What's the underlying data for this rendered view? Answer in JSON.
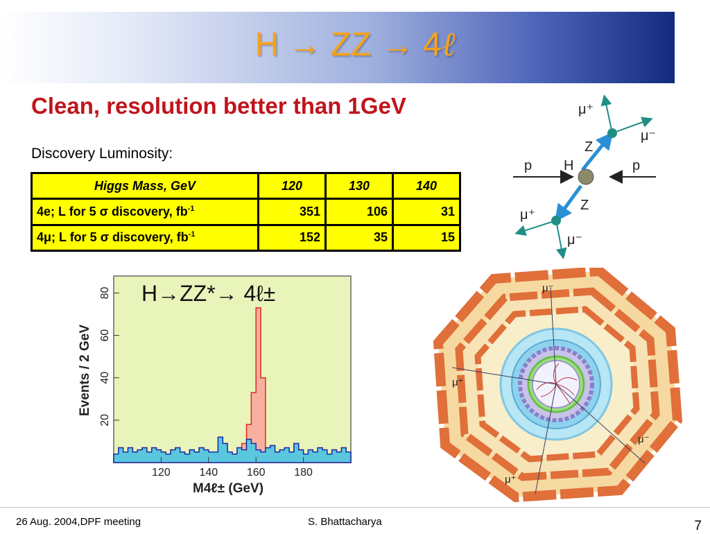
{
  "slide": {
    "title_prefix": "H → ZZ → 4",
    "title_ell": "ℓ",
    "subtitle": "Clean, resolution better than 1GeV",
    "discovery_label": "Discovery Luminosity:"
  },
  "table": {
    "header_label": "Higgs Mass, GeV",
    "masses": [
      "120",
      "130",
      "140"
    ],
    "rows": [
      {
        "label": "4e; L for 5 σ discovery, fb",
        "sup": "-1",
        "values": [
          "351",
          "106",
          "31"
        ]
      },
      {
        "label": "4μ; L for 5 σ discovery, fb",
        "sup": "-1",
        "values": [
          "152",
          "35",
          "15"
        ]
      }
    ]
  },
  "feynman": {
    "labels": {
      "mu_plus_top": "μ⁺",
      "mu_minus_top": "μ⁻",
      "z_top": "Z",
      "p_left": "p",
      "h": "H",
      "p_right": "p",
      "z_bottom": "Z",
      "mu_plus_bottom": "μ⁺",
      "mu_minus_bottom": "μ⁻"
    }
  },
  "detector": {
    "labels": [
      "μ⁻",
      "μ⁺",
      "μ⁻",
      "μ⁺"
    ]
  },
  "chart_data": {
    "type": "bar",
    "title": "H→ZZ*→ 4ℓ±",
    "xlabel": "M4ℓ± (GeV)",
    "ylabel": "Events / 2 GeV",
    "xlim": [
      100,
      200
    ],
    "ylim": [
      0,
      88
    ],
    "x_ticks": [
      120,
      140,
      160,
      180
    ],
    "y_ticks": [
      20,
      40,
      60,
      80
    ],
    "bin_width": 2,
    "bin_start": 100,
    "series": [
      {
        "values": [
          4,
          7,
          5,
          7,
          5,
          6,
          7,
          5,
          7,
          6,
          5,
          4,
          6,
          7,
          5,
          4,
          6,
          5,
          7,
          6,
          5,
          5,
          12,
          9,
          5,
          4,
          7,
          6,
          11,
          9,
          6,
          5,
          7,
          8,
          5,
          6,
          7,
          5,
          9,
          6,
          4,
          6,
          5,
          7,
          6,
          4,
          6,
          5,
          7,
          5
        ]
      },
      {
        "values": [
          4,
          7,
          5,
          7,
          5,
          6,
          7,
          5,
          7,
          6,
          5,
          4,
          6,
          7,
          5,
          4,
          6,
          5,
          7,
          6,
          5,
          5,
          12,
          9,
          5,
          4,
          7,
          9,
          18,
          33,
          73,
          40,
          7,
          8,
          5,
          6,
          7,
          5,
          9,
          6,
          4,
          6,
          5,
          7,
          6,
          4,
          6,
          5,
          7,
          5
        ]
      }
    ],
    "colors": {
      "signal": "#f7b0a0",
      "signal_edge": "#e3281c",
      "background": "#5bc7df",
      "background_edge": "#1d2da6",
      "panel": "#e8f4ba"
    }
  },
  "footer": {
    "left": "26 Aug. 2004,DPF meeting",
    "center": "S. Bhattacharya",
    "page": "7"
  }
}
